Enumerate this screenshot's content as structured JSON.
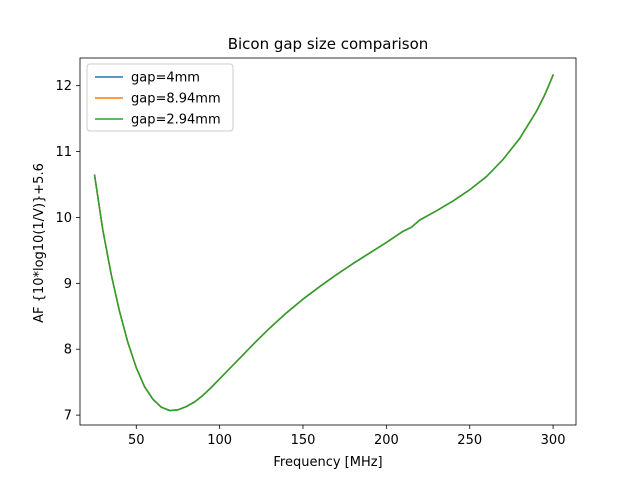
{
  "chart_data": {
    "type": "line",
    "title": "Bicon gap size comparison",
    "xlabel": "Frequency [MHz]",
    "ylabel": "AF {10*log10(1/V)}+5.6",
    "xlim": [
      16.25,
      313.75
    ],
    "ylim": [
      6.85,
      12.42
    ],
    "xticks": [
      50,
      100,
      150,
      200,
      250,
      300
    ],
    "yticks": [
      7,
      8,
      9,
      10,
      11,
      12
    ],
    "grid": false,
    "legend_position": "upper-left",
    "colors": {
      "gap=4mm": "#1f77b4",
      "gap=8.94mm": "#ff7f0e",
      "gap=2.94mm": "#2ca02c"
    },
    "x": [
      25,
      30,
      35,
      40,
      45,
      50,
      55,
      60,
      65,
      70,
      75,
      80,
      85,
      90,
      95,
      100,
      110,
      120,
      130,
      140,
      150,
      160,
      170,
      180,
      190,
      200,
      210,
      215,
      220,
      230,
      240,
      250,
      260,
      270,
      280,
      290,
      295,
      300
    ],
    "series": [
      {
        "name": "gap=4mm",
        "values": [
          10.64,
          9.8,
          9.13,
          8.57,
          8.1,
          7.72,
          7.43,
          7.24,
          7.12,
          7.07,
          7.08,
          7.13,
          7.2,
          7.3,
          7.42,
          7.55,
          7.81,
          8.07,
          8.32,
          8.55,
          8.76,
          8.95,
          9.13,
          9.3,
          9.46,
          9.62,
          9.79,
          9.85,
          9.96,
          10.1,
          10.25,
          10.42,
          10.62,
          10.88,
          11.2,
          11.61,
          11.86,
          12.16
        ]
      },
      {
        "name": "gap=8.94mm",
        "values": [
          10.64,
          9.8,
          9.13,
          8.57,
          8.1,
          7.72,
          7.43,
          7.24,
          7.12,
          7.07,
          7.08,
          7.13,
          7.2,
          7.3,
          7.42,
          7.55,
          7.81,
          8.07,
          8.32,
          8.55,
          8.76,
          8.95,
          9.13,
          9.3,
          9.46,
          9.62,
          9.79,
          9.85,
          9.96,
          10.1,
          10.25,
          10.42,
          10.62,
          10.88,
          11.2,
          11.61,
          11.86,
          12.16
        ]
      },
      {
        "name": "gap=2.94mm",
        "values": [
          10.64,
          9.8,
          9.13,
          8.57,
          8.1,
          7.72,
          7.43,
          7.24,
          7.12,
          7.07,
          7.08,
          7.13,
          7.2,
          7.3,
          7.42,
          7.55,
          7.81,
          8.07,
          8.32,
          8.55,
          8.76,
          8.95,
          9.13,
          9.3,
          9.46,
          9.62,
          9.79,
          9.85,
          9.96,
          10.1,
          10.25,
          10.42,
          10.62,
          10.88,
          11.2,
          11.61,
          11.86,
          12.16
        ]
      }
    ]
  }
}
